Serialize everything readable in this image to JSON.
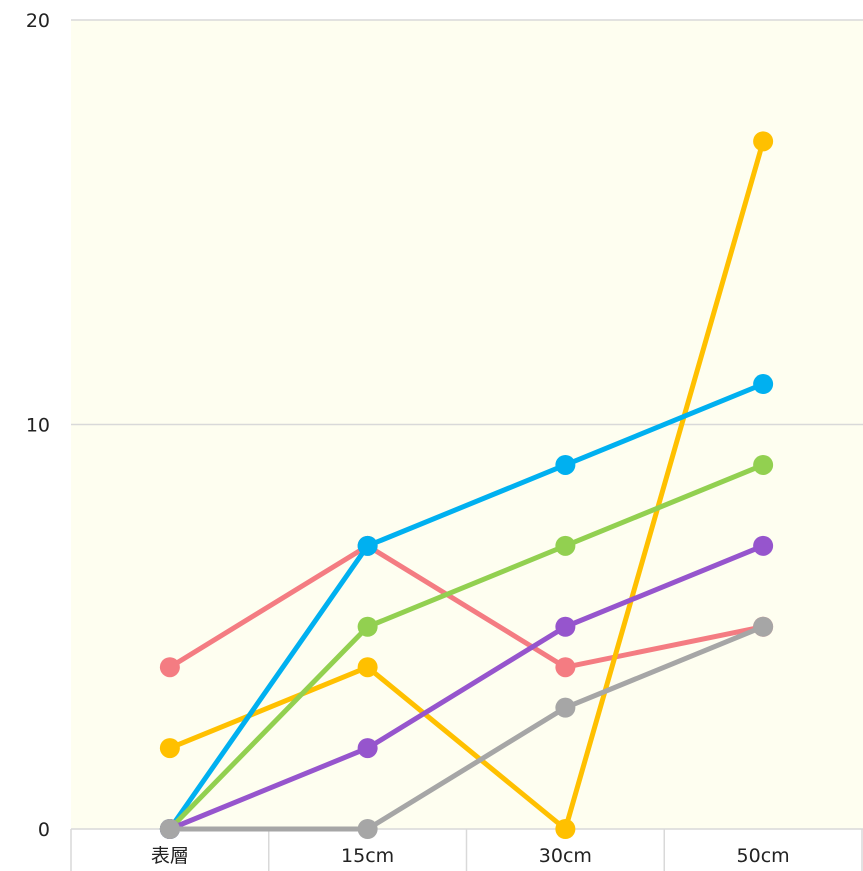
{
  "chart_data": {
    "type": "line",
    "categories": [
      "表層",
      "15cm",
      "30cm",
      "50cm"
    ],
    "ylim": [
      0,
      20
    ],
    "yticks": [
      "0",
      "10",
      "20"
    ],
    "grid": true,
    "plot_background": "#fefef0",
    "series": [
      {
        "color": "#f47c82",
        "values": [
          4,
          7,
          4,
          5
        ]
      },
      {
        "color": "#ffc000",
        "values": [
          2,
          4,
          0,
          17
        ]
      },
      {
        "color": "#00b0f0",
        "values": [
          0,
          7,
          9,
          11
        ]
      },
      {
        "color": "#92d050",
        "values": [
          0,
          5,
          7,
          9
        ]
      },
      {
        "color": "#9655cd",
        "values": [
          0,
          2,
          5,
          7
        ]
      },
      {
        "color": "#a6a6a6",
        "values": [
          0,
          0,
          3,
          5
        ]
      }
    ]
  }
}
